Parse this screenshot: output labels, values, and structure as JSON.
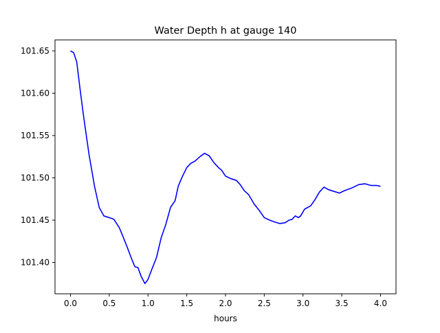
{
  "chart_data": {
    "type": "line",
    "title": "Water Depth h at gauge 140",
    "xlabel": "hours",
    "ylabel": "",
    "xlim": [
      -0.2,
      4.2
    ],
    "ylim": [
      101.363,
      101.663
    ],
    "xticks": [
      0.0,
      0.5,
      1.0,
      1.5,
      2.0,
      2.5,
      3.0,
      3.5,
      4.0
    ],
    "xtick_labels": [
      "0.0",
      "0.5",
      "1.0",
      "1.5",
      "2.0",
      "2.5",
      "3.0",
      "3.5",
      "4.0"
    ],
    "yticks": [
      101.4,
      101.45,
      101.5,
      101.55,
      101.6,
      101.65
    ],
    "ytick_labels": [
      "101.40",
      "101.45",
      "101.50",
      "101.55",
      "101.60",
      "101.65"
    ],
    "grid": false,
    "series": [
      {
        "name": "h",
        "color": "#0000ff",
        "x": [
          0,
          0.04,
          0.08,
          0.125,
          0.17,
          0.24,
          0.31,
          0.37,
          0.43,
          0.5,
          0.56,
          0.63,
          0.68,
          0.74,
          0.79,
          0.83,
          0.87,
          0.91,
          0.96,
          1.0,
          1.05,
          1.11,
          1.17,
          1.23,
          1.29,
          1.35,
          1.39,
          1.44,
          1.5,
          1.55,
          1.61,
          1.67,
          1.73,
          1.79,
          1.85,
          1.91,
          1.95,
          2.0,
          2.07,
          2.14,
          2.19,
          2.24,
          2.3,
          2.37,
          2.44,
          2.5,
          2.57,
          2.63,
          2.7,
          2.77,
          2.82,
          2.86,
          2.9,
          2.94,
          2.97,
          3.02,
          3.1,
          3.16,
          3.21,
          3.27,
          3.33,
          3.4,
          3.47,
          3.54,
          3.63,
          3.72,
          3.8,
          3.88,
          3.95,
          4.0
        ],
        "y": [
          101.65,
          101.648,
          101.637,
          101.604,
          101.572,
          101.527,
          101.49,
          101.465,
          101.455,
          101.453,
          101.451,
          101.441,
          101.43,
          101.416,
          101.404,
          101.395,
          101.394,
          101.384,
          101.375,
          101.38,
          101.392,
          101.406,
          101.429,
          101.445,
          101.465,
          101.473,
          101.49,
          101.501,
          101.512,
          101.517,
          101.52,
          101.525,
          101.529,
          101.526,
          101.518,
          101.512,
          101.509,
          101.502,
          101.499,
          101.497,
          101.492,
          101.485,
          101.48,
          101.469,
          101.461,
          101.453,
          101.45,
          101.448,
          101.446,
          101.447,
          101.45,
          101.451,
          101.455,
          101.453,
          101.455,
          101.463,
          101.467,
          101.475,
          101.483,
          101.489,
          101.486,
          101.484,
          101.482,
          101.485,
          101.488,
          101.492,
          101.493,
          101.491,
          101.491,
          101.49
        ]
      }
    ]
  }
}
